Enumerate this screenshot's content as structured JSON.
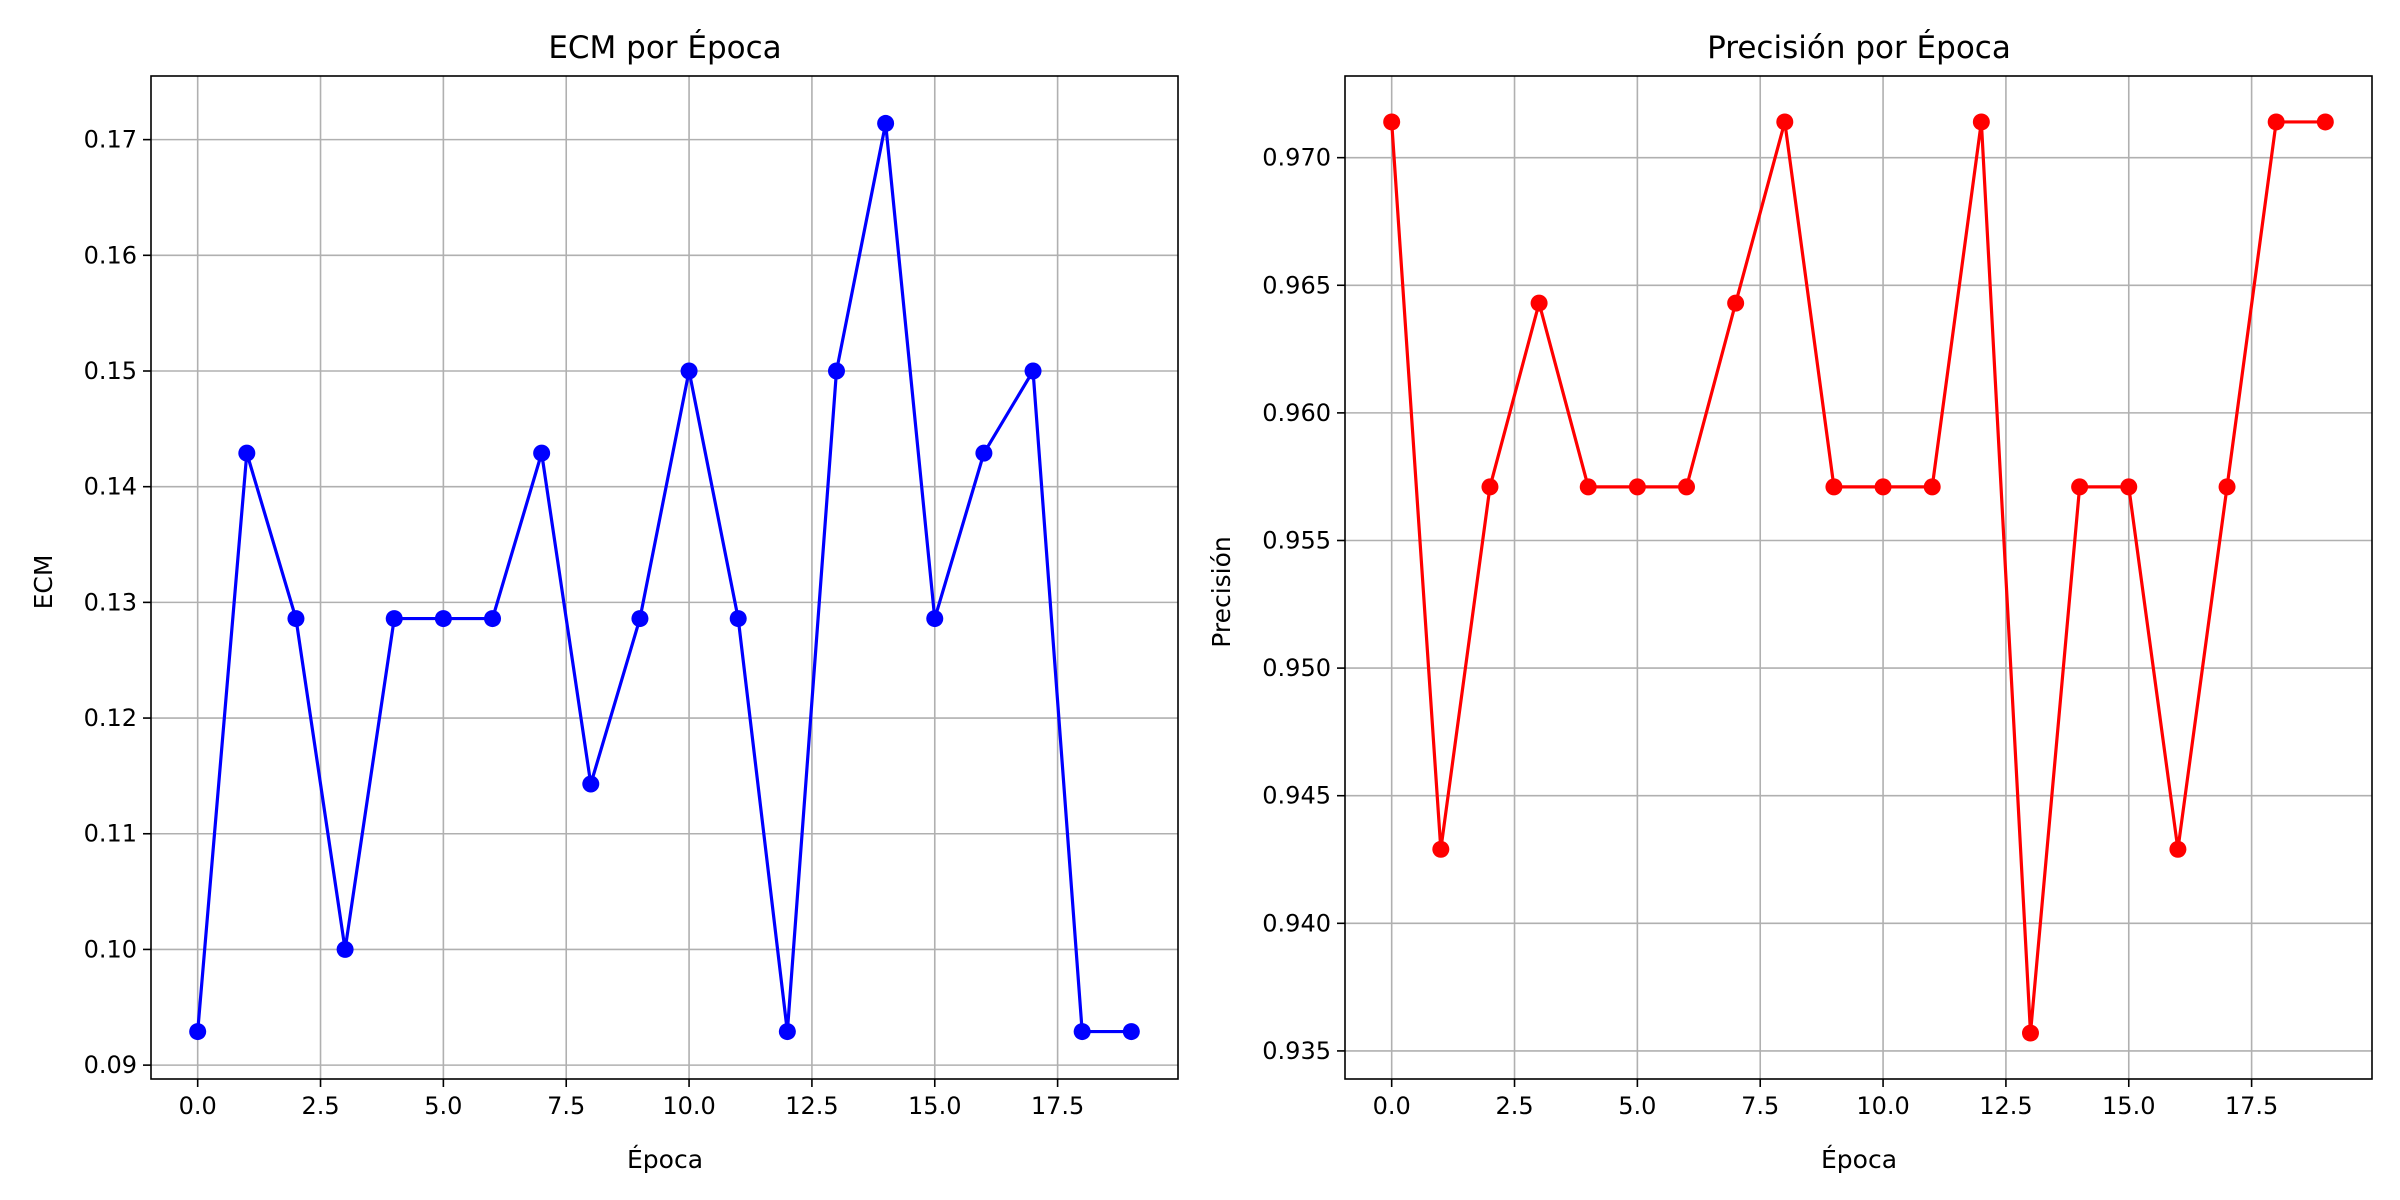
{
  "chart_data": [
    {
      "type": "line",
      "title": "ECM por Época",
      "xlabel": "Época",
      "ylabel": "ECM",
      "xlim": [
        -0.95,
        19.95
      ],
      "ylim": [
        0.0888,
        0.1755
      ],
      "xticks": [
        0.0,
        2.5,
        5.0,
        7.5,
        10.0,
        12.5,
        15.0,
        17.5
      ],
      "xtick_labels": [
        "0.0",
        "2.5",
        "5.0",
        "7.5",
        "10.0",
        "12.5",
        "15.0",
        "17.5"
      ],
      "yticks": [
        0.09,
        0.1,
        0.11,
        0.12,
        0.13,
        0.14,
        0.15,
        0.16,
        0.17
      ],
      "ytick_labels": [
        "0.09",
        "0.10",
        "0.11",
        "0.12",
        "0.13",
        "0.14",
        "0.15",
        "0.16",
        "0.17"
      ],
      "grid": true,
      "series": [
        {
          "color": "#0000ff",
          "marker": "circle",
          "x": [
            0,
            1,
            2,
            3,
            4,
            5,
            6,
            7,
            8,
            9,
            10,
            11,
            12,
            13,
            14,
            15,
            16,
            17,
            18,
            19
          ],
          "y": [
            0.0929,
            0.1429,
            0.1286,
            0.1,
            0.1286,
            0.1286,
            0.1286,
            0.1429,
            0.1143,
            0.1286,
            0.15,
            0.1286,
            0.0929,
            0.15,
            0.1714,
            0.1286,
            0.1429,
            0.15,
            0.0929,
            0.0929
          ]
        }
      ]
    },
    {
      "type": "line",
      "title": "Precisión por Época",
      "xlabel": "Época",
      "ylabel": "Precisión",
      "xlim": [
        -0.95,
        19.95
      ],
      "ylim": [
        0.9339,
        0.9732
      ],
      "xticks": [
        0.0,
        2.5,
        5.0,
        7.5,
        10.0,
        12.5,
        15.0,
        17.5
      ],
      "xtick_labels": [
        "0.0",
        "2.5",
        "5.0",
        "7.5",
        "10.0",
        "12.5",
        "15.0",
        "17.5"
      ],
      "yticks": [
        0.935,
        0.94,
        0.945,
        0.95,
        0.955,
        0.96,
        0.965,
        0.97
      ],
      "ytick_labels": [
        "0.935",
        "0.940",
        "0.945",
        "0.950",
        "0.955",
        "0.960",
        "0.965",
        "0.970"
      ],
      "grid": true,
      "series": [
        {
          "color": "#ff0000",
          "marker": "circle",
          "x": [
            0,
            1,
            2,
            3,
            4,
            5,
            6,
            7,
            8,
            9,
            10,
            11,
            12,
            13,
            14,
            15,
            16,
            17,
            18,
            19
          ],
          "y": [
            0.9714,
            0.9429,
            0.9571,
            0.9643,
            0.9571,
            0.9571,
            0.9571,
            0.9643,
            0.9714,
            0.9571,
            0.9571,
            0.9571,
            0.9714,
            0.9357,
            0.9571,
            0.9571,
            0.9429,
            0.9571,
            0.9714,
            0.9714
          ]
        }
      ]
    }
  ]
}
